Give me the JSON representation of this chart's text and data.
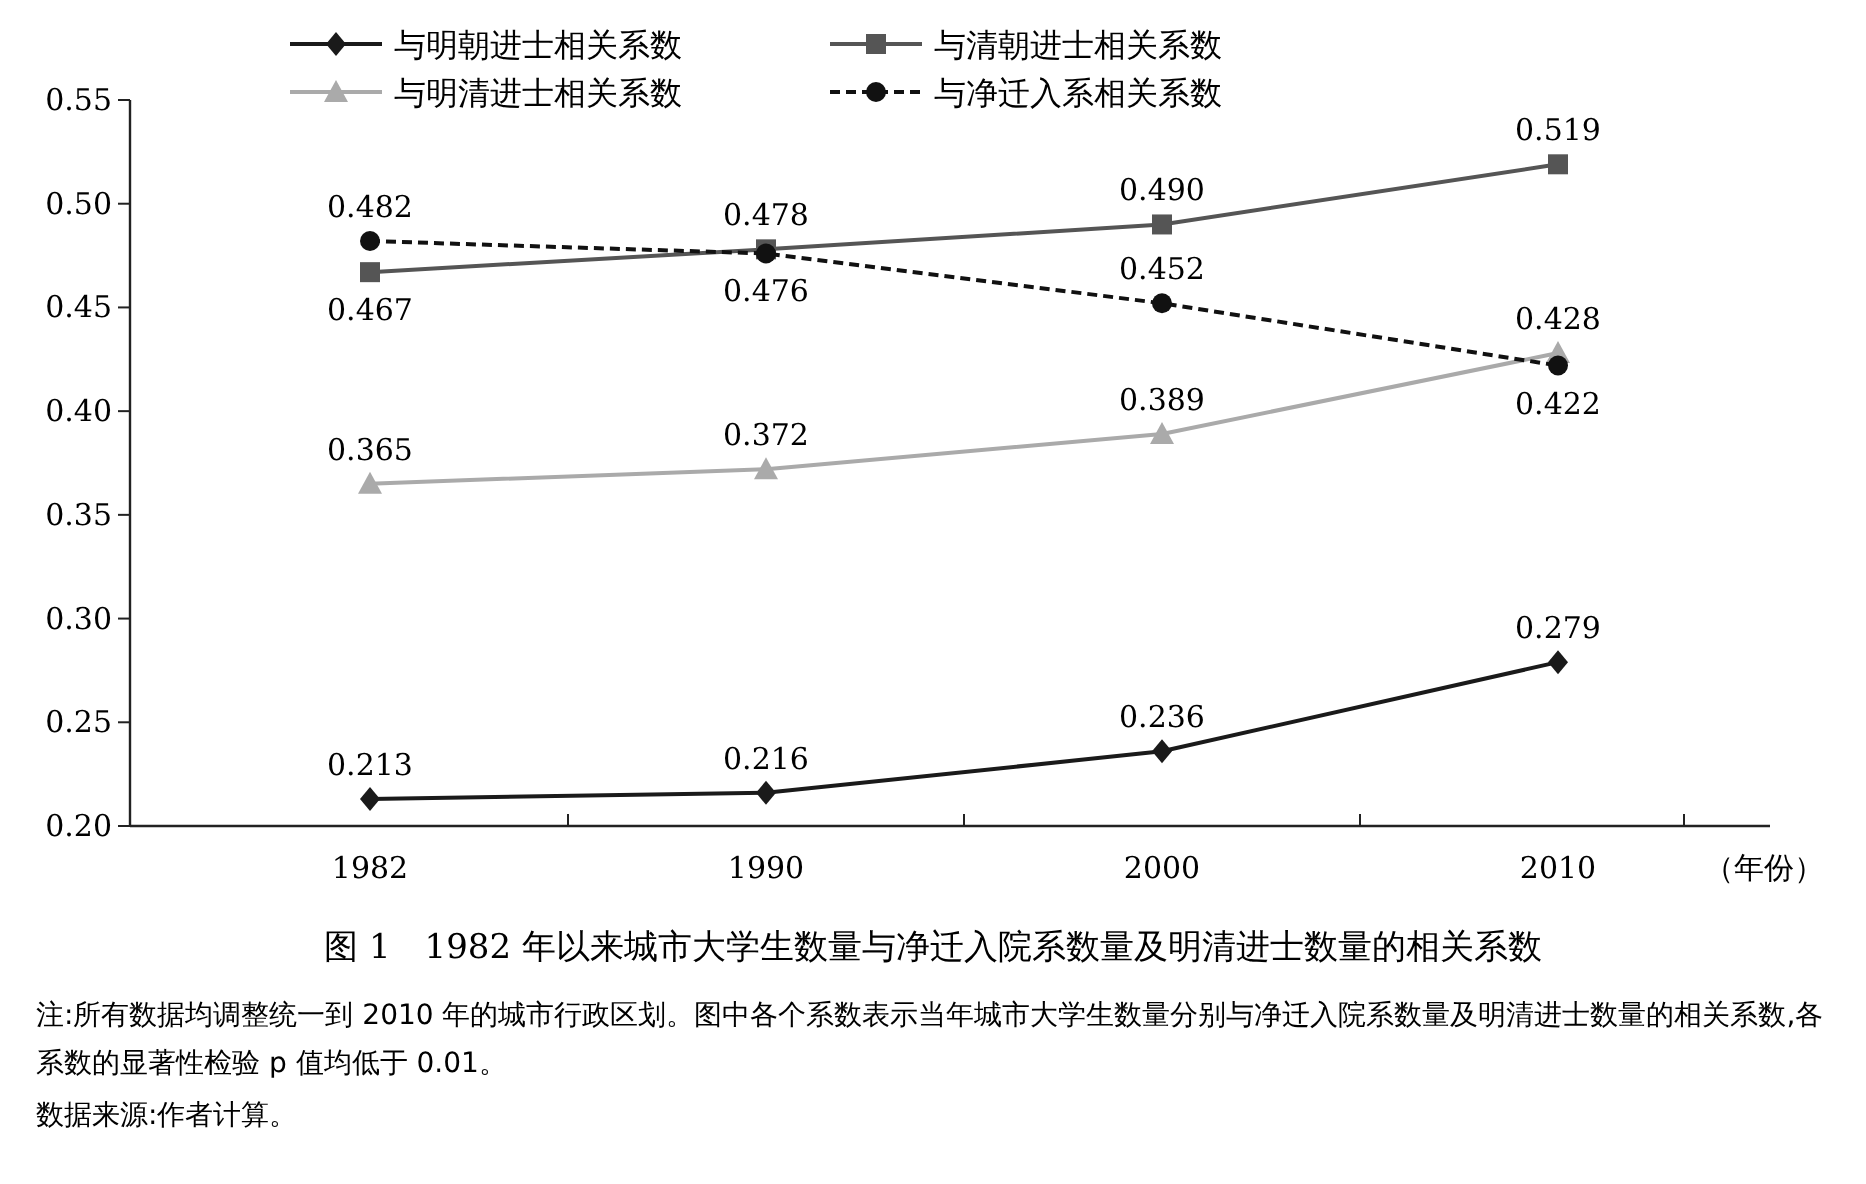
{
  "chart_data": {
    "type": "line",
    "title": "图 1　1982 年以来城市大学生数量与净迁入院系数量及明清进士数量的相关系数",
    "xlabel": "（年份）",
    "categories": [
      "1982",
      "1990",
      "2000",
      "2010"
    ],
    "ylim": [
      0.2,
      0.55
    ],
    "yticks": [
      {
        "value": 0.2,
        "label": "0.20"
      },
      {
        "value": 0.25,
        "label": "0.25"
      },
      {
        "value": 0.3,
        "label": "0.30"
      },
      {
        "value": 0.35,
        "label": "0.35"
      },
      {
        "value": 0.4,
        "label": "0.40"
      },
      {
        "value": 0.45,
        "label": "0.45"
      },
      {
        "value": 0.5,
        "label": "0.50"
      },
      {
        "value": 0.55,
        "label": "0.55"
      }
    ],
    "legend": "top",
    "series": [
      {
        "name": "与明朝进士相关系数",
        "color": "#1a1a1a",
        "marker": "diamond",
        "line_style": "solid",
        "values": [
          0.213,
          0.216,
          0.236,
          0.279
        ],
        "value_labels": [
          "0.213",
          "0.216",
          "0.236",
          "0.279"
        ]
      },
      {
        "name": "与清朝进士相关系数",
        "color": "#555555",
        "marker": "square",
        "line_style": "solid",
        "values": [
          0.467,
          0.478,
          0.49,
          0.519
        ],
        "value_labels": [
          "0.467",
          "0.478",
          "0.490",
          "0.519"
        ]
      },
      {
        "name": "与明清进士相关系数",
        "color": "#aaaaaa",
        "marker": "triangle",
        "line_style": "solid",
        "values": [
          0.365,
          0.372,
          0.389,
          0.428
        ],
        "value_labels": [
          "0.365",
          "0.372",
          "0.389",
          "0.428"
        ]
      },
      {
        "name": "与净迁入系相关系数",
        "color": "#111111",
        "marker": "circle",
        "line_style": "dashed",
        "values": [
          0.482,
          0.476,
          0.452,
          0.422
        ],
        "value_labels": [
          "0.482",
          "0.476",
          "0.452",
          "0.422"
        ]
      }
    ],
    "annotations": [
      "注:所有数据均调整统一到 2010 年的城市行政区划。图中各个系数表示当年城市大学生数量分别与净迁入院系数量及明清进士数量的相关系数,各系数的显著性检验 p 值均低于 0.01。",
      "数据来源:作者计算。"
    ]
  }
}
